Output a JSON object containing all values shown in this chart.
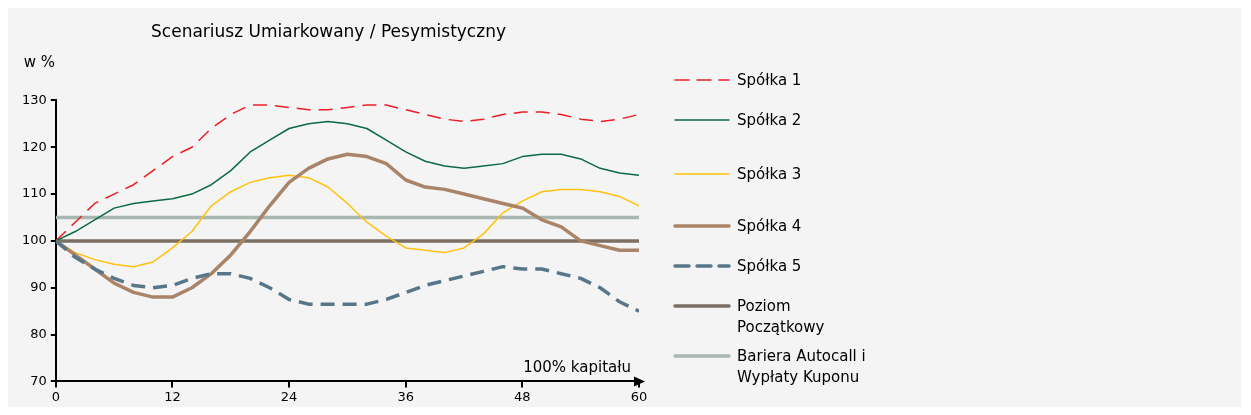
{
  "chart_data": {
    "type": "line",
    "title": "Scenariusz Umiarkowany / Pesymistyczny",
    "ylabel": "w %",
    "x": [
      0,
      2,
      4,
      6,
      8,
      10,
      12,
      14,
      16,
      18,
      20,
      22,
      24,
      26,
      28,
      30,
      32,
      34,
      36,
      38,
      40,
      42,
      44,
      46,
      48,
      50,
      52,
      54,
      56,
      58,
      60
    ],
    "series": [
      {
        "name": "Spółka 1",
        "color": "#ee1c25",
        "line_style": "dashed",
        "values": [
          100,
          104,
          108,
          110,
          112,
          115,
          118,
          120,
          124,
          127,
          129,
          129,
          128.5,
          128,
          128,
          128.5,
          129,
          129,
          128,
          127,
          126,
          125.5,
          126,
          127,
          127.5,
          127.5,
          127,
          126,
          125.5,
          126,
          127
        ]
      },
      {
        "name": "Spółka 2",
        "color": "#0a6b43",
        "line_style": "solid",
        "values": [
          100,
          102,
          104.5,
          107,
          108,
          108.5,
          109,
          110,
          112,
          115,
          119,
          121.5,
          124,
          125,
          125.5,
          125,
          124,
          121.5,
          119,
          117,
          116,
          115.5,
          116,
          116.5,
          118,
          118.5,
          118.5,
          117.5,
          115.5,
          114.5,
          114
        ]
      },
      {
        "name": "Spółka 3",
        "color": "#ffc20e",
        "line_style": "solid",
        "values": [
          100,
          97.5,
          96,
          95,
          94.5,
          95.5,
          98.5,
          102,
          107.5,
          110.5,
          112.5,
          113.5,
          114,
          113.5,
          111.5,
          108,
          104,
          101,
          98.5,
          98,
          97.5,
          98.5,
          101.5,
          106,
          108.5,
          110.5,
          111,
          111,
          110.5,
          109.5,
          107.5
        ]
      },
      {
        "name": "Spółka 4",
        "color": "#a98468",
        "line_style": "solid",
        "values": [
          100,
          97,
          94,
          91,
          89,
          88,
          88,
          90,
          93,
          97,
          102,
          107.5,
          112.5,
          115.5,
          117.5,
          118.5,
          118,
          116.5,
          113,
          111.5,
          111,
          110,
          109,
          108,
          107,
          104.5,
          103,
          100,
          99,
          98,
          98
        ]
      },
      {
        "name": "Spółka 5",
        "color": "#587689",
        "line_style": "dashed",
        "values": [
          100,
          96.5,
          94,
          92,
          90.5,
          90,
          90.5,
          92,
          93,
          93,
          92,
          90,
          87.5,
          86.5,
          86.5,
          86.5,
          86.5,
          87.5,
          89,
          90.5,
          91.5,
          92.5,
          93.5,
          94.5,
          94,
          94,
          93,
          92,
          90,
          87,
          85
        ]
      }
    ],
    "ref_lines": [
      {
        "axis": "y",
        "value": 100,
        "label": "Poziom Początkowy",
        "color": "#7b6e63"
      },
      {
        "axis": "y",
        "value": 105,
        "label": "Bariera Autocall i Wypłaty Kuponu",
        "color": "#a8b8b0"
      }
    ],
    "xlim": [
      0,
      60
    ],
    "xticks": [
      0,
      12,
      24,
      36,
      48,
      60
    ],
    "ylim": [
      70,
      130
    ],
    "yticks": [
      70,
      80,
      90,
      100,
      110,
      120,
      130
    ],
    "annotations": [
      "100% kapitału"
    ],
    "grid": false,
    "legend": "right",
    "marker": "none"
  }
}
